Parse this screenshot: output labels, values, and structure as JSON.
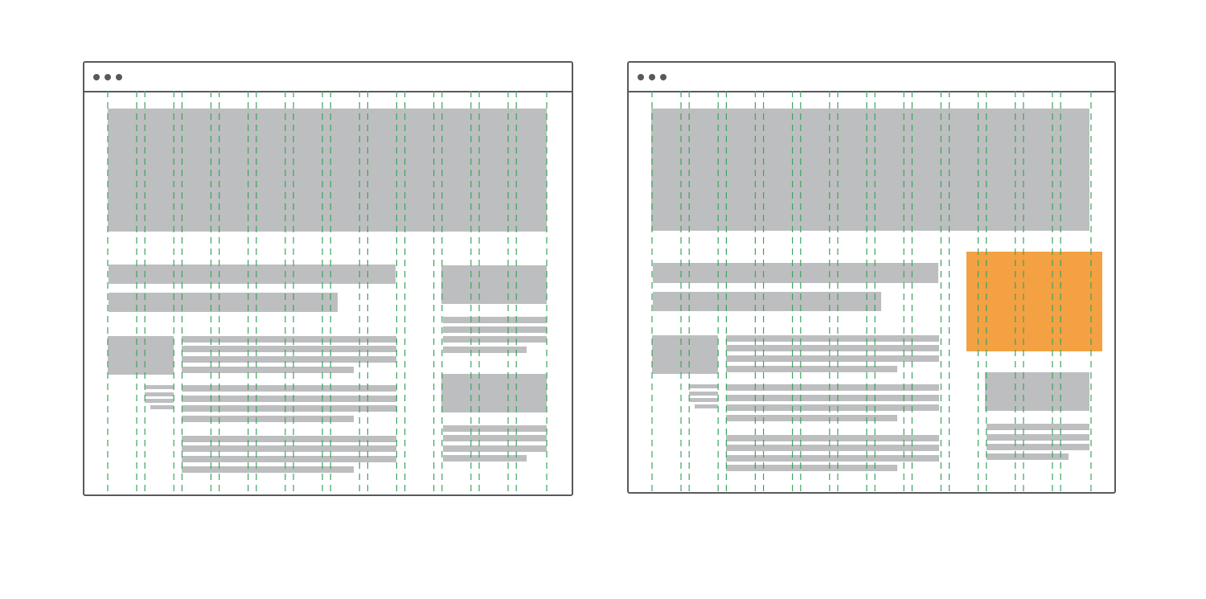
{
  "colors": {
    "frame": "#58595b",
    "placeholder_block": "#bdbebf",
    "grid_guide": "#3aa55e",
    "highlight_block": "#f3a143"
  },
  "icons": [
    "window-control-dots"
  ],
  "grid": {
    "columns": 12
  },
  "wireframes": [
    {
      "name": "layout-original"
    },
    {
      "name": "layout-with-highlighted-block"
    }
  ]
}
